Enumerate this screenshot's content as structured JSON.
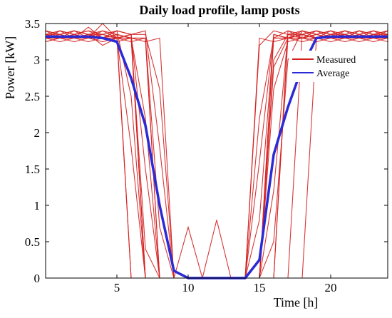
{
  "chart_data": {
    "type": "line",
    "title": "Daily load profile, lamp posts",
    "xlabel": "Time [h]",
    "ylabel": "Power [kW]",
    "xlim": [
      0,
      24
    ],
    "ylim": [
      0,
      3.5
    ],
    "x_ticks": [
      5,
      10,
      15,
      20
    ],
    "y_ticks": [
      0,
      0.5,
      1,
      1.5,
      2,
      2.5,
      3,
      3.5
    ],
    "grid": false,
    "legend": {
      "position": "top-right",
      "entries": [
        "Measured",
        "Average"
      ]
    },
    "colors": {
      "measured": "#d42020",
      "average": "#2a2ad6"
    },
    "x": [
      0,
      1,
      2,
      3,
      4,
      5,
      6,
      7,
      8,
      9,
      10,
      11,
      12,
      13,
      14,
      15,
      16,
      17,
      18,
      19,
      20,
      21,
      22,
      23,
      24
    ],
    "series": [
      {
        "name": "Average",
        "values": [
          3.32,
          3.32,
          3.32,
          3.32,
          3.3,
          3.25,
          2.75,
          2.1,
          1.0,
          0.1,
          0.0,
          0.0,
          0.0,
          0.0,
          0.0,
          0.25,
          1.7,
          2.35,
          2.9,
          3.3,
          3.32,
          3.32,
          3.32,
          3.32,
          3.32
        ]
      },
      {
        "name": "Measured",
        "profiles": [
          [
            3.3,
            3.3,
            3.35,
            3.3,
            3.3,
            3.3,
            0.0,
            0.0,
            0.0,
            0.0,
            0.0,
            0.0,
            0.0,
            0.0,
            0.0,
            0.0,
            3.3,
            3.3,
            3.35,
            3.3,
            3.3,
            3.3,
            3.35,
            3.3,
            3.3
          ],
          [
            3.4,
            3.35,
            3.4,
            3.35,
            3.2,
            3.3,
            3.35,
            0.0,
            0.0,
            0.0,
            0.0,
            0.0,
            0.0,
            0.0,
            0.0,
            0.0,
            0.0,
            3.4,
            3.35,
            3.4,
            3.35,
            3.4,
            3.35,
            3.4,
            3.35
          ],
          [
            3.25,
            3.3,
            3.25,
            3.3,
            3.25,
            3.3,
            3.25,
            3.3,
            0.0,
            0.0,
            0.0,
            0.0,
            0.0,
            0.0,
            0.0,
            3.3,
            3.25,
            3.3,
            3.25,
            3.3,
            3.25,
            3.3,
            3.25,
            3.3,
            3.25
          ],
          [
            3.3,
            3.4,
            3.3,
            3.45,
            3.3,
            3.4,
            2.5,
            0.0,
            0.0,
            0.0,
            0.0,
            0.0,
            0.0,
            0.0,
            0.0,
            0.0,
            2.9,
            3.3,
            3.4,
            3.3,
            3.4,
            3.3,
            3.4,
            3.3,
            3.4
          ],
          [
            3.35,
            3.3,
            3.35,
            3.3,
            3.35,
            3.3,
            3.35,
            1.5,
            0.0,
            0.0,
            0.0,
            0.0,
            0.0,
            0.0,
            0.0,
            0.0,
            1.2,
            3.35,
            3.3,
            3.35,
            3.3,
            3.35,
            3.3,
            3.35,
            3.3
          ],
          [
            3.3,
            3.3,
            3.3,
            3.3,
            3.3,
            3.3,
            3.3,
            3.3,
            0.7,
            0.0,
            0.0,
            0.0,
            0.0,
            0.0,
            0.0,
            2.2,
            3.3,
            3.3,
            3.3,
            3.3,
            3.3,
            3.3,
            3.3,
            3.3,
            3.3
          ],
          [
            3.4,
            3.35,
            3.4,
            3.35,
            3.4,
            3.35,
            0.0,
            0.0,
            0.0,
            0.0,
            0.7,
            0.0,
            0.0,
            0.0,
            0.0,
            0.0,
            0.0,
            0.0,
            3.35,
            3.4,
            3.35,
            3.4,
            3.35,
            3.4,
            3.35
          ],
          [
            3.3,
            3.25,
            3.3,
            3.25,
            3.3,
            3.25,
            3.3,
            2.2,
            0.0,
            0.0,
            0.0,
            0.0,
            0.8,
            0.0,
            0.0,
            0.0,
            2.6,
            3.25,
            3.3,
            3.25,
            3.3,
            3.25,
            3.3,
            3.25,
            3.3
          ],
          [
            3.35,
            3.4,
            3.35,
            3.4,
            3.35,
            3.4,
            3.35,
            3.4,
            1.8,
            0.0,
            0.0,
            0.0,
            0.0,
            0.0,
            0.0,
            3.2,
            3.4,
            3.35,
            3.4,
            3.35,
            3.4,
            3.35,
            3.4,
            3.35,
            3.4
          ],
          [
            3.3,
            3.35,
            3.3,
            3.35,
            3.3,
            3.35,
            3.3,
            0.4,
            0.0,
            0.0,
            0.0,
            0.0,
            0.0,
            0.0,
            0.0,
            0.0,
            3.35,
            3.3,
            3.35,
            3.3,
            3.35,
            3.3,
            3.35,
            3.3,
            3.35
          ],
          [
            3.25,
            3.3,
            3.35,
            3.3,
            3.5,
            3.3,
            3.3,
            3.25,
            3.3,
            0.0,
            0.0,
            0.0,
            0.0,
            0.0,
            0.0,
            0.0,
            0.0,
            0.0,
            0.0,
            3.3,
            3.3,
            3.35,
            3.3,
            3.35,
            3.3
          ],
          [
            3.4,
            3.3,
            3.4,
            3.3,
            3.4,
            3.3,
            1.8,
            0.0,
            0.0,
            0.0,
            0.0,
            0.0,
            0.0,
            0.0,
            0.0,
            0.8,
            3.3,
            3.4,
            3.3,
            3.4,
            3.3,
            3.4,
            3.3,
            3.4,
            3.3
          ],
          [
            3.35,
            3.35,
            3.3,
            3.35,
            3.35,
            3.3,
            3.35,
            3.35,
            2.6,
            0.0,
            0.0,
            0.0,
            0.0,
            0.0,
            0.0,
            0.0,
            3.0,
            3.35,
            3.35,
            3.3,
            3.35,
            3.35,
            3.3,
            3.35,
            3.35
          ],
          [
            3.3,
            3.4,
            3.35,
            3.4,
            3.3,
            3.4,
            3.35,
            0.0,
            0.0,
            0.0,
            0.0,
            0.0,
            0.0,
            0.0,
            0.0,
            0.0,
            0.5,
            3.0,
            3.4,
            3.35,
            3.4,
            3.3,
            3.4,
            3.35,
            3.4
          ],
          [
            3.3,
            3.3,
            3.35,
            3.3,
            3.3,
            3.35,
            3.3,
            3.3,
            0.0,
            0.0,
            0.0,
            0.0,
            0.0,
            0.0,
            0.0,
            1.6,
            3.35,
            3.3,
            3.3,
            3.35,
            3.3,
            3.3,
            3.35,
            3.3,
            3.3
          ],
          [
            3.35,
            3.3,
            3.3,
            3.35,
            3.3,
            3.3,
            3.3,
            0.0,
            0.0,
            0.0,
            0.0,
            0.0,
            0.0,
            0.0,
            0.0,
            0.0,
            0.0,
            3.3,
            3.35,
            3.3,
            3.3,
            3.35,
            3.3,
            3.3,
            3.35
          ]
        ]
      }
    ]
  }
}
